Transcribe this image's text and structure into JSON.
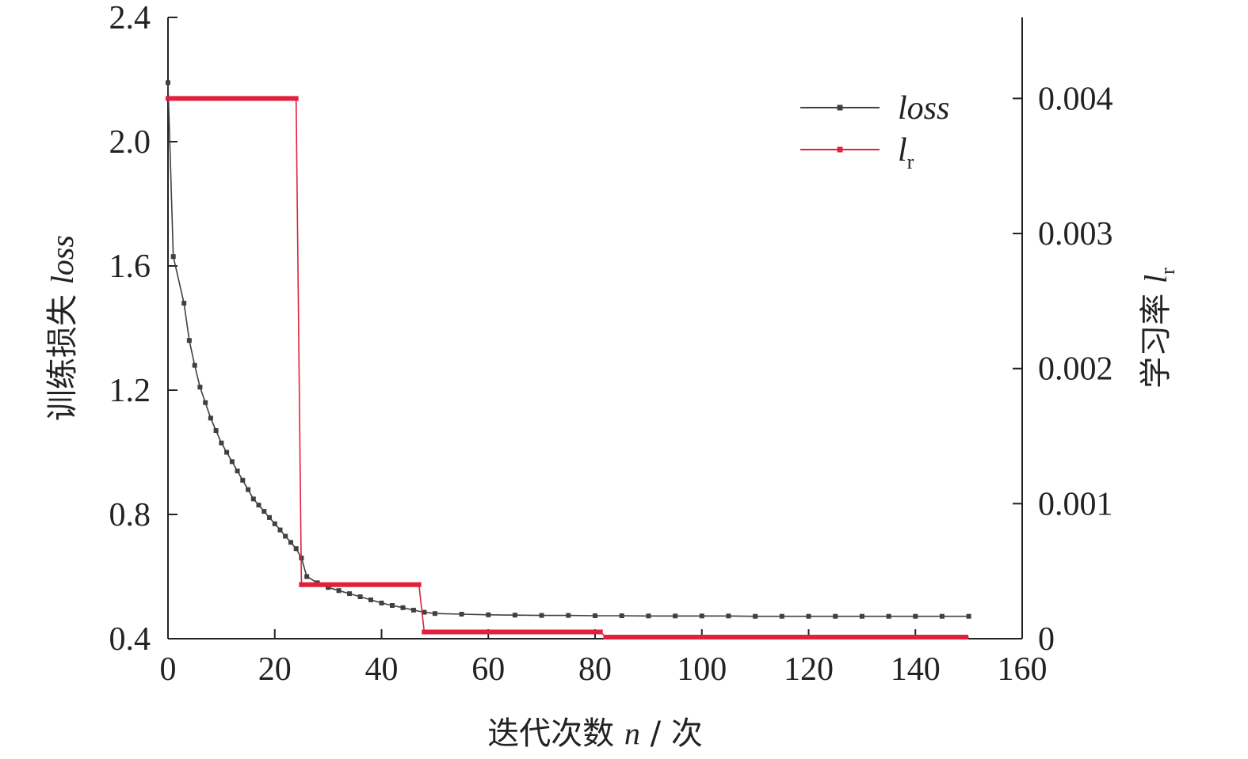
{
  "chart_data": {
    "type": "line",
    "x_axis": {
      "label_prefix": "迭代次数 ",
      "label_var": "n",
      "label_suffix": " / 次",
      "lim": [
        0,
        160
      ],
      "ticks": [
        0,
        20,
        40,
        60,
        80,
        100,
        120,
        140,
        160
      ],
      "tick_labels": [
        "0",
        "20",
        "40",
        "60",
        "80",
        "100",
        "120",
        "140",
        "160"
      ]
    },
    "y_axis_left": {
      "label_prefix": "训练损失 ",
      "label_var": "loss",
      "lim": [
        0.4,
        2.4
      ],
      "ticks": [
        0.4,
        0.8,
        1.2,
        1.6,
        2.0,
        2.4
      ],
      "tick_labels": [
        "0.4",
        "0.8",
        "1.2",
        "1.6",
        "2.0",
        "2.4"
      ]
    },
    "y_axis_right": {
      "label_prefix": "学习率 ",
      "label_var": "l",
      "label_sub": "r",
      "lim": [
        0,
        0.0046
      ],
      "ticks": [
        0,
        0.001,
        0.002,
        0.003,
        0.004
      ],
      "tick_labels": [
        "0",
        "0.001",
        "0.002",
        "0.003",
        "0.004"
      ]
    },
    "legend": {
      "position": "top-right",
      "entries": [
        {
          "name": "loss",
          "sub": ""
        },
        {
          "name": "l",
          "sub": "r"
        }
      ]
    },
    "grid": false,
    "series": [
      {
        "name": "loss",
        "axis": "left",
        "color": "#404040",
        "x": [
          0,
          1,
          3,
          4,
          5,
          6,
          7,
          8,
          9,
          10,
          11,
          12,
          13,
          14,
          15,
          16,
          17,
          18,
          19,
          20,
          21,
          22,
          23,
          24,
          25,
          26,
          28,
          30,
          32,
          34,
          36,
          38,
          40,
          42,
          44,
          46,
          48,
          50,
          55,
          60,
          65,
          70,
          75,
          80,
          85,
          90,
          95,
          100,
          105,
          110,
          115,
          120,
          125,
          130,
          135,
          140,
          145,
          150
        ],
        "y": [
          2.19,
          1.63,
          1.48,
          1.36,
          1.28,
          1.21,
          1.16,
          1.11,
          1.07,
          1.03,
          1.0,
          0.97,
          0.94,
          0.91,
          0.88,
          0.85,
          0.83,
          0.81,
          0.79,
          0.77,
          0.75,
          0.73,
          0.71,
          0.69,
          0.66,
          0.6,
          0.58,
          0.565,
          0.555,
          0.545,
          0.535,
          0.525,
          0.515,
          0.507,
          0.5,
          0.492,
          0.485,
          0.481,
          0.479,
          0.477,
          0.476,
          0.475,
          0.475,
          0.474,
          0.474,
          0.473,
          0.473,
          0.473,
          0.473,
          0.472,
          0.472,
          0.472,
          0.472,
          0.472,
          0.472,
          0.472,
          0.472,
          0.472
        ]
      },
      {
        "name": "l_r",
        "axis": "right",
        "color": "#e0203c",
        "x": [
          0,
          24,
          24,
          25,
          25,
          47,
          47,
          48,
          48,
          81,
          81,
          82,
          82,
          150
        ],
        "y": [
          0.004,
          0.004,
          0.004,
          0.0004,
          0.0004,
          0.0004,
          0.0004,
          5e-05,
          5e-05,
          5e-05,
          5e-05,
          1.2e-05,
          1.2e-05,
          1.2e-05
        ]
      }
    ]
  }
}
